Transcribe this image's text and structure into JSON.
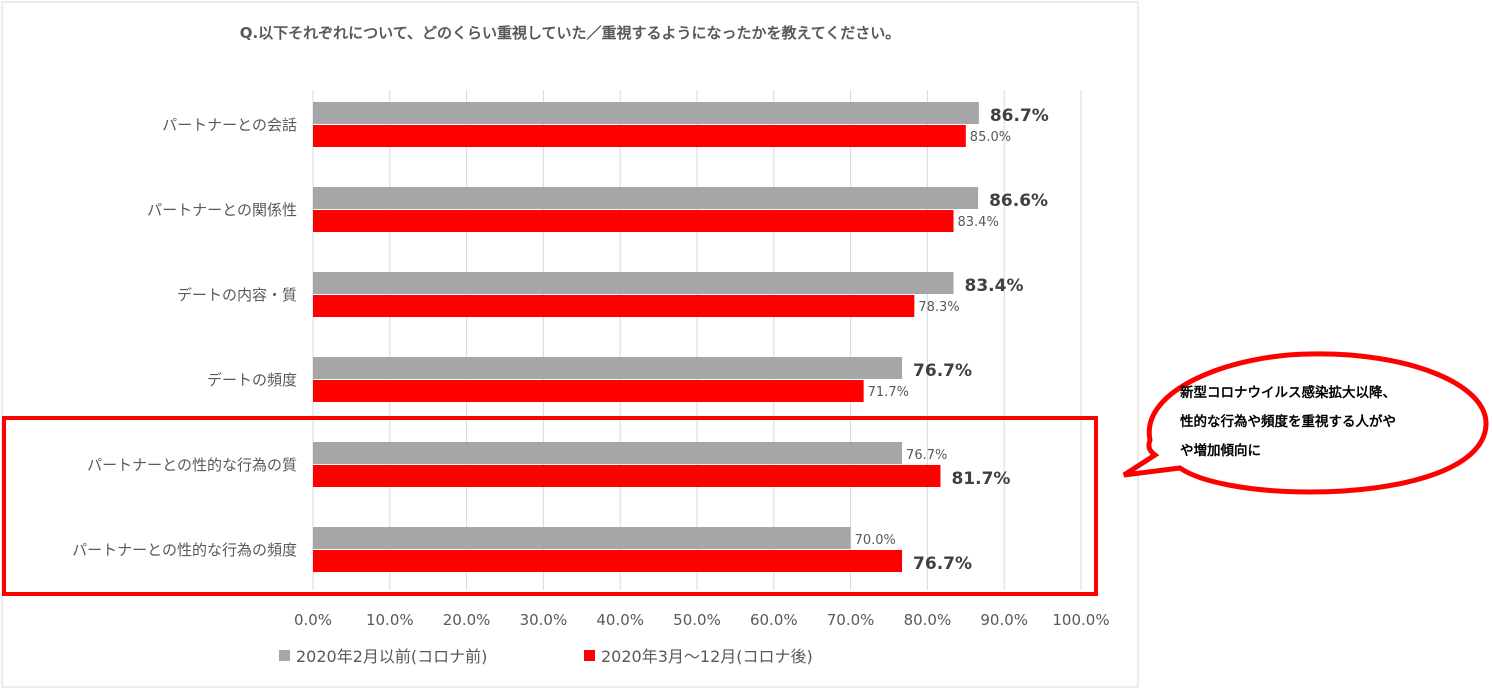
{
  "chart_data": {
    "type": "bar",
    "orientation": "horizontal",
    "title": "Q.以下それぞれについて、どのくらい重視していた／重視するようになったかを教えてください。",
    "categories": [
      "パートナーとの会話",
      "パートナーとの関係性",
      "デートの内容・質",
      "デートの頻度",
      "パートナーとの性的な行為の質",
      "パートナーとの性的な行為の頻度"
    ],
    "series": [
      {
        "name": "2020年2月以前(コロナ前)",
        "color": "#a6a6a6",
        "values": [
          86.7,
          86.6,
          83.4,
          76.7,
          76.7,
          70.0
        ]
      },
      {
        "name": "2020年3月～12月(コロナ後)",
        "color": "#ff0000",
        "values": [
          85.0,
          83.4,
          78.3,
          71.7,
          81.7,
          76.7
        ]
      }
    ],
    "data_labels": [
      [
        "86.7%",
        "86.6%",
        "83.4%",
        "76.7%",
        "76.7%",
        "70.0%"
      ],
      [
        "85.0%",
        "83.4%",
        "78.3%",
        "71.7%",
        "81.7%",
        "76.7%"
      ]
    ],
    "xlim": [
      0,
      100
    ],
    "xticks": [
      "0.0%",
      "10.0%",
      "20.0%",
      "30.0%",
      "40.0%",
      "50.0%",
      "60.0%",
      "70.0%",
      "80.0%",
      "90.0%",
      "100.0%"
    ],
    "grid": true,
    "legend": "bottom",
    "highlight_color": "#ff0000"
  },
  "callout": {
    "text_lines": [
      "新型コロナウイルス感染拡大以降、",
      "性的な行為や頻度を重視する人がや",
      "や増加傾向に"
    ]
  }
}
